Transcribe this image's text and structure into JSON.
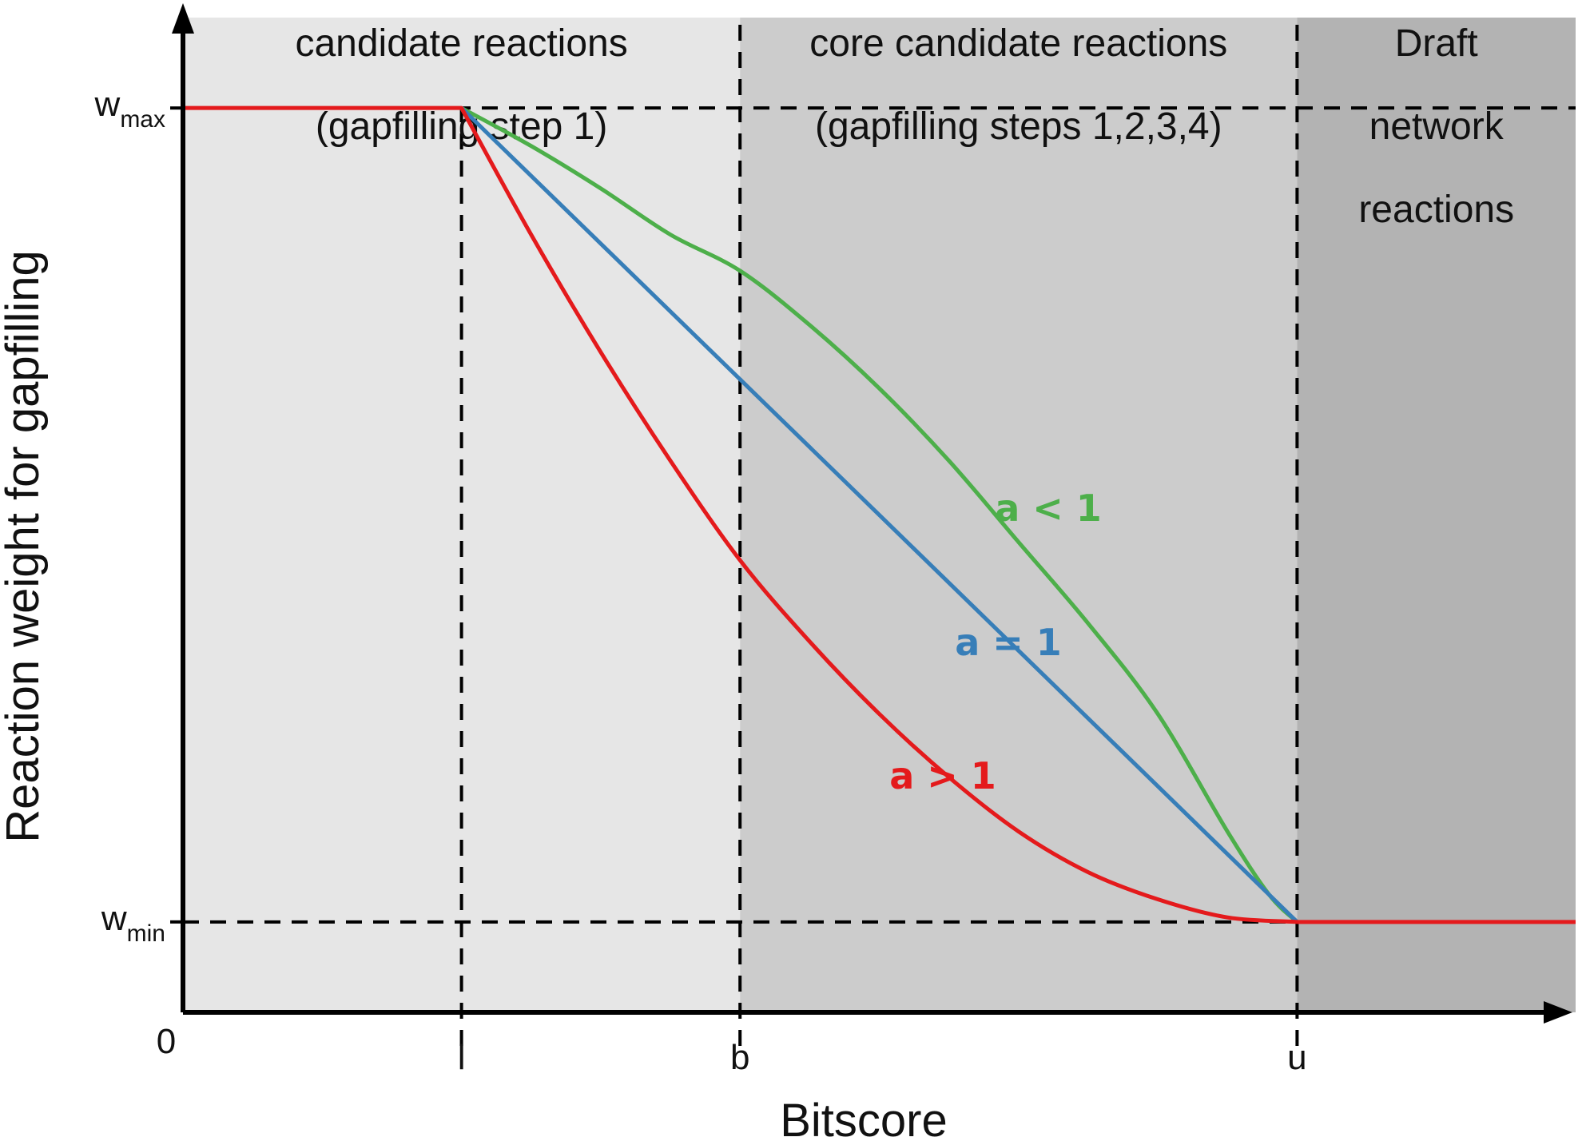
{
  "chart_data": {
    "type": "line",
    "xlabel": "Bitscore",
    "ylabel": "Reaction weight for gapfilling",
    "x_ticks": [
      {
        "key": "l",
        "label": "l",
        "value": 1
      },
      {
        "key": "b",
        "label": "b",
        "value": 2
      },
      {
        "key": "u",
        "label": "u",
        "value": 4
      }
    ],
    "origin_label": "0",
    "y_ticks": [
      {
        "key": "wmin",
        "base": "w",
        "sub": "min",
        "value": 0.1
      },
      {
        "key": "wmax",
        "base": "w",
        "sub": "max",
        "value": 1.0
      }
    ],
    "xlim": [
      0,
      5
    ],
    "ylim": [
      0,
      1.1
    ],
    "regions": [
      {
        "key": "candidate",
        "x0": 0,
        "x1": 2,
        "color": "#e6e6e6",
        "lines": [
          "candidate reactions",
          "(gapfilling step 1)"
        ]
      },
      {
        "key": "core",
        "x0": 2,
        "x1": 4,
        "color": "#cccccc",
        "lines": [
          "core candidate reactions",
          "(gapfilling steps 1,2,3,4)"
        ]
      },
      {
        "key": "draft",
        "x0": 4,
        "x1": 5,
        "color": "#b3b3b3",
        "lines": [
          "Draft",
          "network",
          "reactions"
        ]
      }
    ],
    "series": [
      {
        "key": "a-less-1",
        "name": "a < 1",
        "color": "#4daf4a",
        "x": [
          1,
          1.25,
          1.5,
          1.75,
          2,
          2.25,
          2.5,
          2.75,
          3,
          3.25,
          3.5,
          3.75,
          3.9,
          4
        ],
        "y": [
          1.0,
          0.958,
          0.911,
          0.86,
          0.82,
          0.76,
          0.69,
          0.61,
          0.52,
          0.43,
          0.33,
          0.2,
          0.13,
          0.1
        ]
      },
      {
        "key": "a-eq-1",
        "name": "a = 1",
        "color": "#377eb8",
        "x": [
          1,
          4
        ],
        "y": [
          1.0,
          0.1
        ]
      },
      {
        "key": "a-gt-1",
        "name": "a > 1",
        "color": "#e41a1c",
        "x": [
          0,
          1,
          1.25,
          1.5,
          1.75,
          2,
          2.25,
          2.5,
          2.75,
          3,
          3.25,
          3.5,
          3.75,
          4,
          5
        ],
        "y": [
          1.0,
          1.0,
          0.86,
          0.73,
          0.61,
          0.5,
          0.41,
          0.33,
          0.26,
          0.2,
          0.155,
          0.125,
          0.105,
          0.1,
          0.1
        ]
      }
    ],
    "grid": false,
    "legend": "none"
  }
}
